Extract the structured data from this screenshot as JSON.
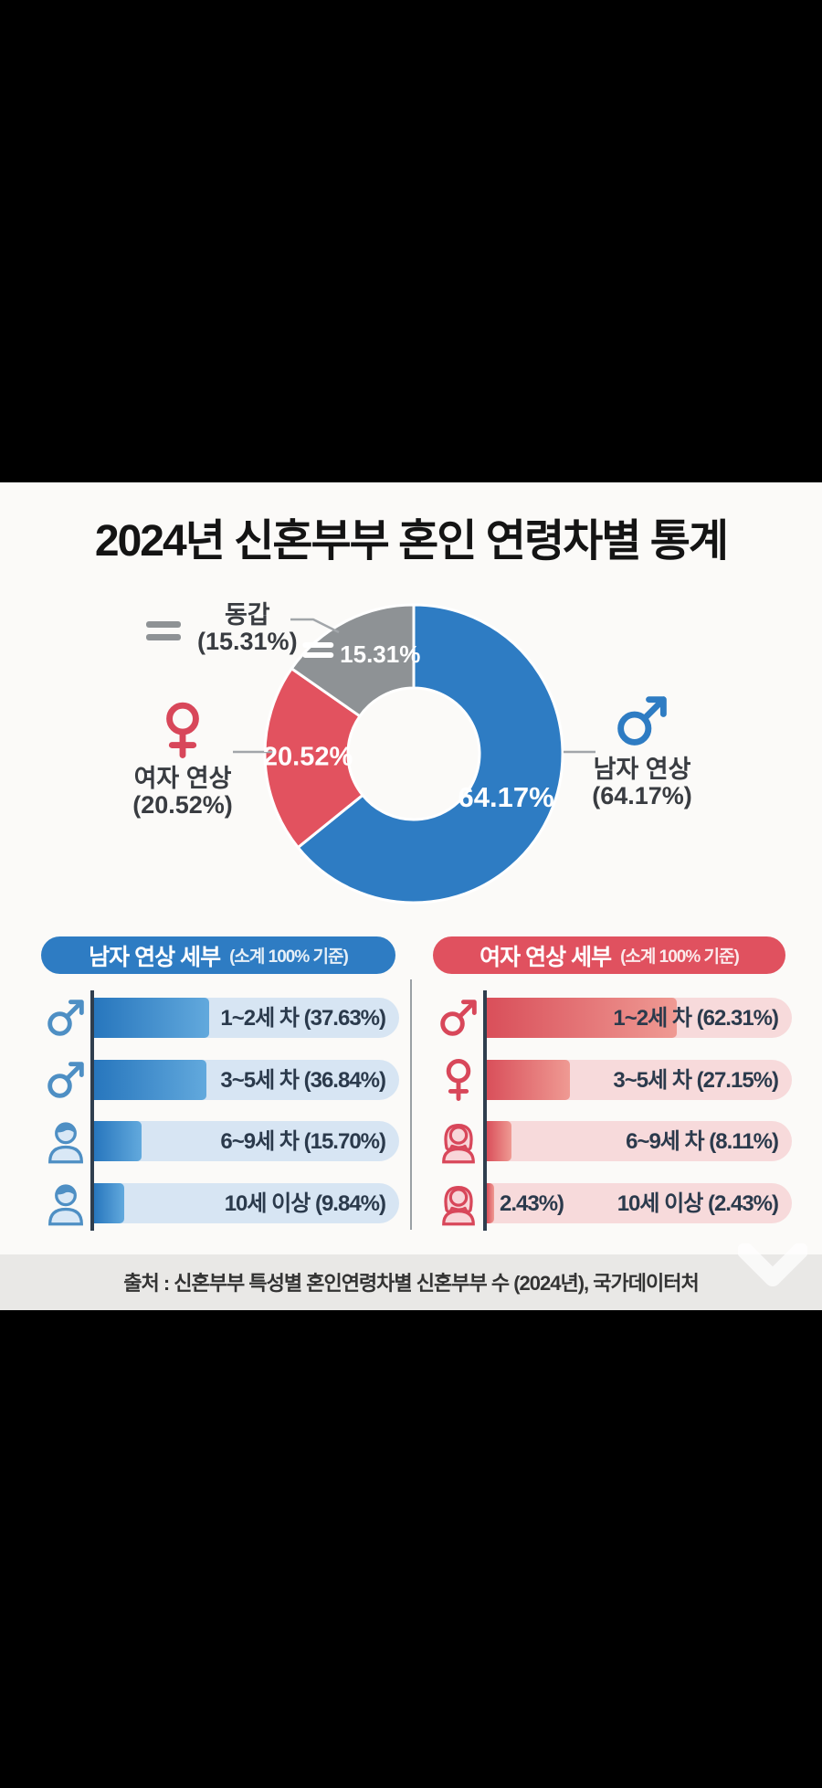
{
  "title": "2024년 신혼부부 혼인 연령차별 통계",
  "donut_legends": {
    "equal": {
      "name": "동갑",
      "pct": "(15.31%)"
    },
    "female": {
      "name": "여자 연상",
      "pct": "(20.52%)"
    },
    "male": {
      "name": "남자 연상",
      "pct": "(64.17%)"
    }
  },
  "chart_data": [
    {
      "type": "pie",
      "subtype": "donut",
      "start_angle_deg": 0,
      "direction": "clockwise",
      "slices": [
        {
          "label": "남자 연상",
          "value": 64.17,
          "display": "64.17%",
          "color": "#2e7cc3"
        },
        {
          "label": "여자 연상",
          "value": 20.52,
          "display": "20.52%",
          "color": "#e2525f"
        },
        {
          "label": "동갑",
          "value": 15.31,
          "display": "15.31%",
          "color": "#8e9295"
        }
      ]
    },
    {
      "type": "bar",
      "orientation": "horizontal",
      "title": "남자 연상 세부",
      "subtitle": "(소계 100% 기준)",
      "categories": [
        "1~2세 차",
        "3~5세 차",
        "6~9세 차",
        "10세 이상"
      ],
      "values": [
        37.63,
        36.84,
        15.7,
        9.84
      ],
      "labels": [
        "1~2세 차 (37.63%)",
        "3~5세 차 (36.84%)",
        "6~9세 차 (15.70%)",
        "10세 이상 (9.84%)"
      ],
      "xlim": [
        0,
        100
      ],
      "color": "#2e7cc3"
    },
    {
      "type": "bar",
      "orientation": "horizontal",
      "title": "여자 연상 세부",
      "subtitle": "(소계 100% 기준)",
      "categories": [
        "1~2세 차",
        "3~5세 차",
        "6~9세 차",
        "10세 이상"
      ],
      "values": [
        62.31,
        27.15,
        8.11,
        2.43
      ],
      "labels": [
        "1~2세 차 (62.31%)",
        "3~5세 차 (27.15%)",
        "6~9세 차 (8.11%)",
        "10세 이상 (2.43%)"
      ],
      "stray_label": "2.43%)",
      "xlim": [
        0,
        100
      ],
      "color": "#e2525f"
    }
  ],
  "footer": {
    "source": "출처 : 신혼부부 특성별 혼인연령차별 신혼부부 수 (2024년), 국가데이터처"
  },
  "colors": {
    "male_blue": "#2e7cc3",
    "female_red": "#e2525f",
    "equal_gray": "#8e9295",
    "track_blue": "#d7e5f3",
    "track_pink": "#f7dadb",
    "footer_band": "#e9e8e6"
  }
}
